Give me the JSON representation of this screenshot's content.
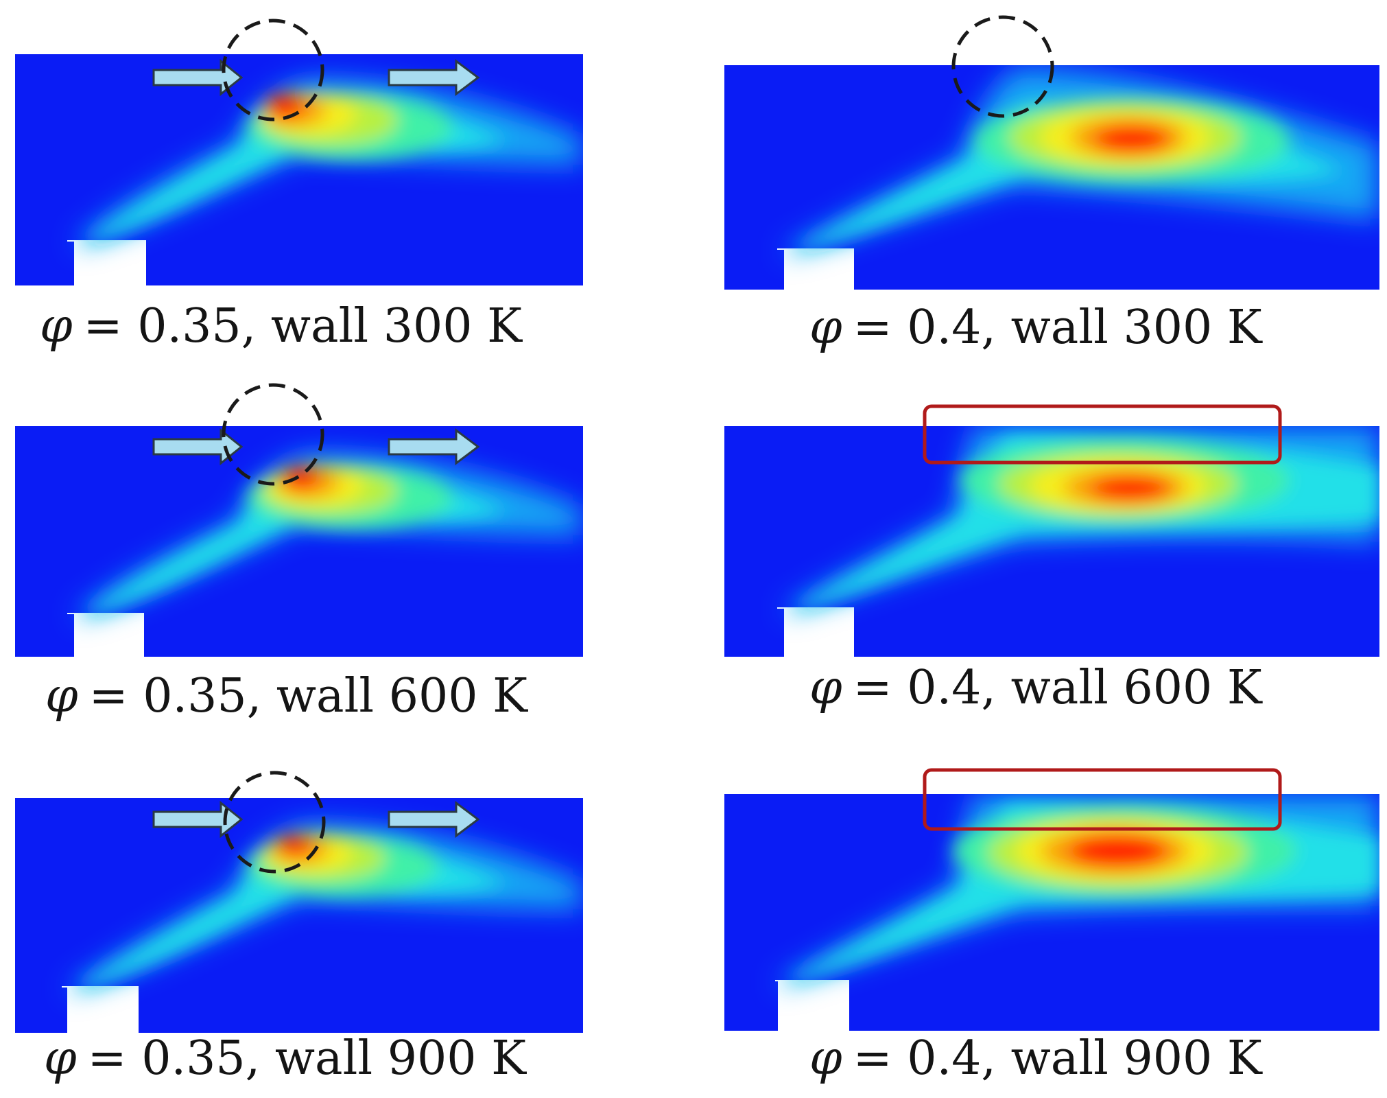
{
  "colors": {
    "field_base": "#0a1cf5",
    "jet_contours": [
      "#18a6f4",
      "#22e0e8",
      "#3ff0a8",
      "#b8f040",
      "#f6ee1c",
      "#f9a00f",
      "#f03c12",
      "#ff1c06"
    ],
    "flow_arrow_fill": "#a8dcf0",
    "flow_arrow_stroke": "#2a3a44",
    "recirculation_marker": "#1a1a1a",
    "wall_region_marker": "#b01a1a",
    "inlet": "#0a1cf5"
  },
  "panels": [
    {
      "id": "p035_300",
      "phi_symbol": "φ",
      "label": "= 0.35, wall 300 K",
      "marker": "dashed-circle",
      "flow_arrows": true
    },
    {
      "id": "p040_300",
      "phi_symbol": "φ",
      "label": "= 0.4, wall 300 K",
      "marker": "dashed-circle",
      "flow_arrows": false
    },
    {
      "id": "p035_600",
      "phi_symbol": "φ",
      "label": "= 0.35, wall 600 K",
      "marker": "dashed-circle",
      "flow_arrows": true
    },
    {
      "id": "p040_600",
      "phi_symbol": "φ",
      "label": "= 0.4, wall 600 K",
      "marker": "rectangle",
      "flow_arrows": false
    },
    {
      "id": "p035_900",
      "phi_symbol": "φ",
      "label": "= 0.35, wall 900 K",
      "marker": "dashed-circle",
      "flow_arrows": true
    },
    {
      "id": "p040_900",
      "phi_symbol": "φ",
      "label": "= 0.4, wall 900 K",
      "marker": "rectangle",
      "flow_arrows": false
    }
  ]
}
